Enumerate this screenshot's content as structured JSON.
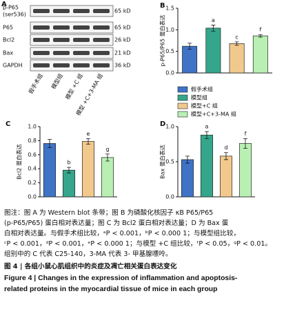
{
  "blot": {
    "panel": "A",
    "rows": [
      [
        "p-P65",
        "(ser536)"
      ],
      [
        "P65"
      ],
      [
        "Bcl2"
      ],
      [
        "Bax"
      ],
      [
        "GAPDH"
      ]
    ],
    "sizes": [
      "65 kD",
      "65 kD",
      "26 kD",
      "21 kD",
      "36 kD"
    ],
    "lanes": [
      "假手术组",
      "模型组",
      "模型 +C 组",
      "模型 +C+3-MA 组"
    ]
  },
  "legend": {
    "items": [
      "假手术组",
      "模型组",
      "模型+C 组",
      "模型+C+3-MA 组"
    ],
    "colors": [
      "#3f73c6",
      "#35a68b",
      "#f1c98c",
      "#b9efb3"
    ]
  },
  "chart_data": [
    {
      "type": "bar",
      "panel": "B",
      "y_label": "p-P65/P65 蛋白表达",
      "values": [
        0.62,
        1.04,
        0.68,
        0.86
      ],
      "errors": [
        0.07,
        0.07,
        0.04,
        0.03
      ],
      "annotations": [
        null,
        "a",
        "c",
        "f"
      ],
      "ylim": [
        0,
        1.5
      ],
      "yticks": [
        {
          "value": 0,
          "label": "0.0"
        },
        0.5,
        {
          "value": 1,
          "label": "1.0"
        },
        1.5
      ]
    },
    {
      "type": "bar",
      "panel": "C",
      "y_label": "Bcl2 蛋白表达",
      "values": [
        0.76,
        0.38,
        0.79,
        0.56
      ],
      "errors": [
        0.06,
        0.04,
        0.04,
        0.05
      ],
      "annotations": [
        null,
        "b",
        "e",
        "g"
      ],
      "ylim": [
        0,
        1
      ],
      "yticks": [
        {
          "value": 0,
          "label": "0.0"
        },
        0.2,
        0.4,
        0.6,
        0.8,
        {
          "value": 1,
          "label": "1.0"
        }
      ]
    },
    {
      "type": "bar",
      "panel": "D",
      "y_label": "Bax 蛋白表达",
      "values": [
        0.53,
        0.88,
        0.58,
        0.76
      ],
      "errors": [
        0.05,
        0.05,
        0.05,
        0.07
      ],
      "annotations": [
        null,
        "a",
        "d",
        "f"
      ],
      "ylim": [
        0,
        1
      ],
      "yticks": [
        {
          "value": 0,
          "label": "0.0"
        },
        0.5,
        {
          "value": 1,
          "label": "1.0"
        }
      ]
    }
  ],
  "caption": {
    "lines": [
      "图注：图 A 为 Western blot 条带；图 B 为磷酸化核因子 κB P65/P65",
      "(p-P65/P65) 蛋白相对表达量；图 C 为 Bcl2 蛋白相对表达量；D 为 Bax 蛋",
      "白相对表达量。与假手术组比较，ᵃP < 0.001，ᵇP < 0.000 1；与模型组比较，",
      "ᶜP < 0.001，ᵈP < 0.001，ᵉP < 0.000 1；与模型 +C 组比较，ᶠP < 0.05，ᵍP < 0.01。",
      "组别中的 C 代表 C25-140，3-MA 代表 3- 甲基腺嘌呤。"
    ],
    "title_cn": "图 4 | 各组小鼠心肌组织中的炎症及凋亡相关蛋白表达变化",
    "title_en": [
      "Figure 4 | Changes in the expression of inflammation and apoptosis-",
      "related proteins in the myocardial tissue of mice in each group"
    ]
  }
}
